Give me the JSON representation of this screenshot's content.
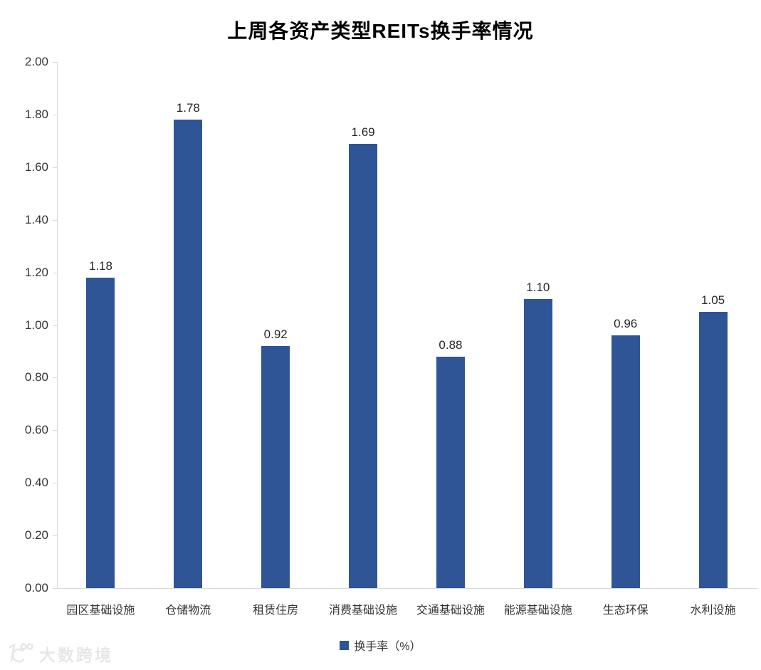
{
  "chart_data": {
    "type": "bar",
    "title": "上周各资产类型REITs换手率情况",
    "categories": [
      "园区基础设施",
      "仓储物流",
      "租赁住房",
      "消费基础设施",
      "交通基础设施",
      "能源基础设施",
      "生态环保",
      "水利设施"
    ],
    "values": [
      1.18,
      1.78,
      0.92,
      1.69,
      0.88,
      1.1,
      0.96,
      1.05
    ],
    "value_labels": [
      "1.18",
      "1.78",
      "0.92",
      "1.69",
      "0.88",
      "1.10",
      "0.96",
      "1.05"
    ],
    "xlabel": "",
    "ylabel": "",
    "ylim": [
      0,
      2
    ],
    "ytick_labels": [
      "2.00",
      "1.80",
      "1.60",
      "1.40",
      "1.20",
      "1.00",
      "0.80",
      "0.60",
      "0.40",
      "0.20",
      "0.00"
    ],
    "grid": false,
    "bar_color": "#2F5596",
    "legend": {
      "position": "bottom",
      "entries": [
        {
          "label": "换手率（%）",
          "color": "#2F5596"
        }
      ]
    }
  },
  "watermark": {
    "text": "大数跨境",
    "color": "#e7e7e5"
  },
  "colors": {
    "bar": "#2F5596",
    "axis_line": "#d9d9d9",
    "axis_text": "#333333",
    "value_text": "#262626",
    "background": "#ffffff"
  }
}
